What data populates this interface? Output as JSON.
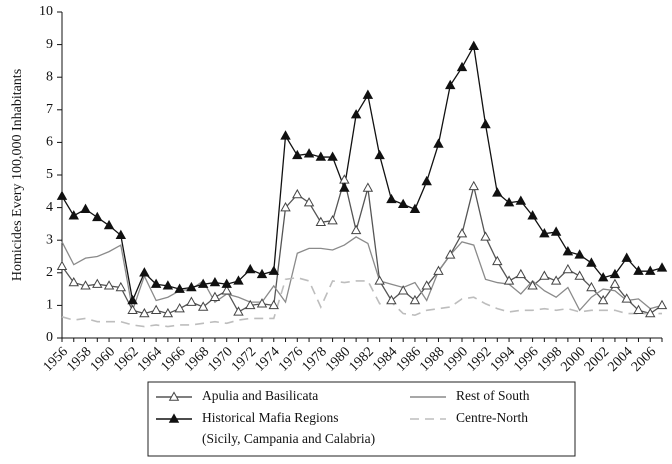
{
  "chart_data": {
    "type": "line",
    "title": "",
    "xlabel": "",
    "ylabel": "Homicides Every 100,000 Inhabitants",
    "ylim": [
      0,
      10
    ],
    "yticks": [
      0,
      1,
      2,
      3,
      4,
      5,
      6,
      7,
      8,
      9,
      10
    ],
    "xlim": [
      1956,
      2007
    ],
    "xticks": [
      1956,
      1958,
      1960,
      1962,
      1964,
      1966,
      1968,
      1970,
      1972,
      1974,
      1976,
      1978,
      1980,
      1982,
      1984,
      1986,
      1988,
      1990,
      1992,
      1994,
      1996,
      1998,
      2000,
      2002,
      2004,
      2006
    ],
    "grid": false,
    "legend_position": "bottom",
    "x": [
      1956,
      1957,
      1958,
      1959,
      1960,
      1961,
      1962,
      1963,
      1964,
      1965,
      1966,
      1967,
      1968,
      1969,
      1970,
      1971,
      1972,
      1973,
      1974,
      1975,
      1976,
      1977,
      1978,
      1979,
      1980,
      1981,
      1982,
      1983,
      1984,
      1985,
      1986,
      1987,
      1988,
      1989,
      1990,
      1991,
      1992,
      1993,
      1994,
      1995,
      1996,
      1997,
      1998,
      1999,
      2000,
      2001,
      2002,
      2003,
      2004,
      2005,
      2006,
      2007
    ],
    "series": [
      {
        "name": "Apulia and Basilicata",
        "color": "#555555",
        "marker": "open-triangle",
        "dash": "solid",
        "values": [
          2.2,
          1.7,
          1.6,
          1.65,
          1.6,
          1.55,
          0.85,
          0.75,
          0.85,
          0.75,
          0.9,
          1.1,
          0.95,
          1.25,
          1.45,
          0.8,
          1.0,
          1.05,
          1.0,
          4.0,
          4.4,
          4.15,
          3.55,
          3.6,
          4.85,
          3.3,
          4.6,
          1.75,
          1.15,
          1.45,
          1.15,
          1.6,
          2.05,
          2.55,
          3.2,
          4.65,
          3.1,
          2.35,
          1.75,
          1.95,
          1.6,
          1.9,
          1.75,
          2.1,
          1.9,
          1.55,
          1.15,
          1.65,
          1.2,
          0.85,
          0.75,
          1.0
        ]
      },
      {
        "name": "Rest of South",
        "color": "#8a8a8a",
        "marker": "none",
        "dash": "solid",
        "values": [
          2.95,
          2.25,
          2.45,
          2.5,
          2.65,
          2.85,
          0.85,
          1.9,
          1.15,
          1.25,
          1.45,
          1.5,
          1.75,
          1.1,
          1.35,
          1.25,
          1.1,
          1.1,
          1.6,
          1.1,
          2.6,
          2.75,
          2.75,
          2.7,
          2.85,
          3.1,
          2.9,
          1.75,
          1.65,
          1.55,
          1.7,
          1.15,
          2.05,
          2.55,
          2.95,
          2.85,
          1.8,
          1.7,
          1.65,
          1.35,
          1.75,
          1.45,
          1.25,
          1.55,
          0.85,
          1.25,
          1.5,
          1.45,
          1.15,
          1.2,
          0.9,
          1.0
        ]
      },
      {
        "name": "Historical Mafia Regions",
        "name_line2": "(Sicily, Campania and Calabria)",
        "color": "#111111",
        "marker": "filled-triangle",
        "dash": "solid",
        "values": [
          4.35,
          3.75,
          3.95,
          3.7,
          3.45,
          3.15,
          1.15,
          2.0,
          1.65,
          1.6,
          1.5,
          1.55,
          1.65,
          1.7,
          1.65,
          1.75,
          2.1,
          1.95,
          2.05,
          6.2,
          5.6,
          5.65,
          5.55,
          5.55,
          4.6,
          6.85,
          7.45,
          5.6,
          4.25,
          4.1,
          3.95,
          4.8,
          5.95,
          7.75,
          8.3,
          8.95,
          6.55,
          4.45,
          4.15,
          4.2,
          3.75,
          3.2,
          3.25,
          2.65,
          2.55,
          2.3,
          1.85,
          1.95,
          2.45,
          2.05,
          2.05,
          2.15
        ]
      },
      {
        "name": "Centre-North",
        "color": "#bdbdbd",
        "marker": "none",
        "dash": "dashed",
        "values": [
          0.65,
          0.55,
          0.6,
          0.5,
          0.5,
          0.5,
          0.4,
          0.35,
          0.4,
          0.35,
          0.4,
          0.4,
          0.45,
          0.5,
          0.45,
          0.55,
          0.6,
          0.6,
          0.6,
          1.8,
          1.85,
          1.75,
          0.95,
          1.75,
          1.7,
          1.75,
          1.75,
          1.05,
          1.1,
          0.75,
          0.7,
          0.85,
          0.9,
          0.95,
          1.2,
          1.25,
          1.05,
          0.9,
          0.8,
          0.85,
          0.85,
          0.9,
          0.85,
          0.9,
          0.8,
          0.85,
          0.85,
          0.85,
          0.75,
          0.75,
          0.75,
          0.75
        ]
      }
    ]
  }
}
